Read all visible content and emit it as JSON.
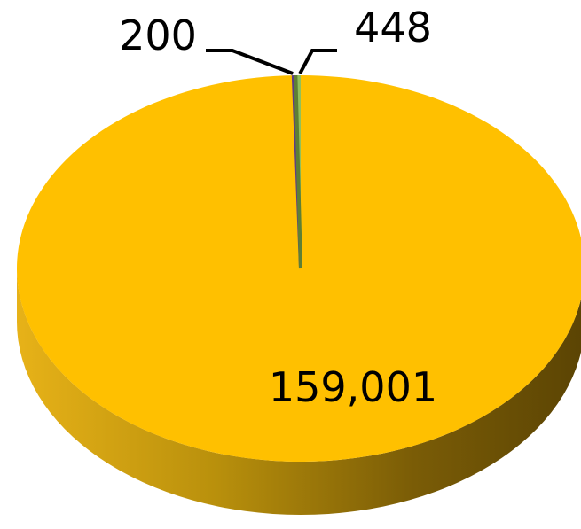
{
  "chart_data": {
    "type": "pie",
    "style": "3d",
    "categories": [
      "",
      "",
      ""
    ],
    "values": [
      159001,
      200,
      448
    ],
    "data_labels": [
      "159,001",
      "200",
      "448"
    ],
    "colors": [
      "#FFC000",
      "#9B65D9",
      "#92C05B"
    ],
    "side_colors": [
      "#B08A0A",
      "#5E3B86",
      "#5E7F35"
    ],
    "title": "",
    "legend": "none"
  }
}
